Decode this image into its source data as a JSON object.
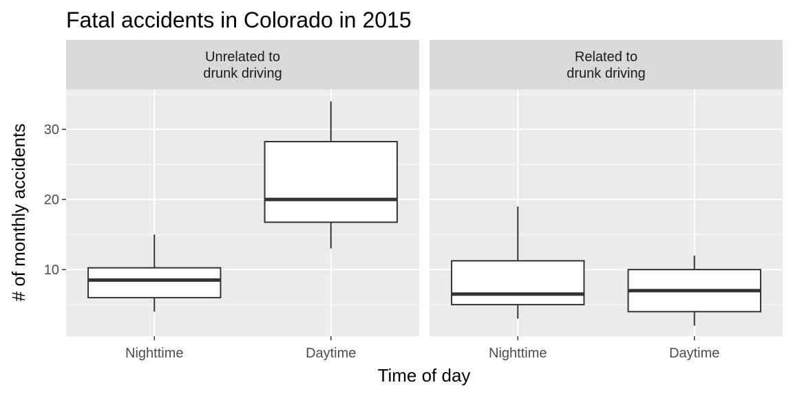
{
  "chart_data": {
    "type": "boxplot",
    "title": "Fatal accidents in Colorado in 2015",
    "xlabel": "Time of day",
    "ylabel": "# of monthly accidents",
    "categories": [
      "Nighttime",
      "Daytime"
    ],
    "y_ticks": [
      10,
      20,
      30
    ],
    "ylim": [
      0.5,
      35.7
    ],
    "grid": true,
    "panels": [
      {
        "strip_lines": [
          "Unrelated to",
          "drunk driving"
        ],
        "boxes": [
          {
            "category": "Nighttime",
            "min": 4,
            "q1": 6,
            "median": 8.5,
            "q3": 10.25,
            "max": 15
          },
          {
            "category": "Daytime",
            "min": 13,
            "q1": 16.75,
            "median": 20,
            "q3": 28.25,
            "max": 34
          }
        ]
      },
      {
        "strip_lines": [
          "Related to",
          "drunk driving"
        ],
        "boxes": [
          {
            "category": "Nighttime",
            "min": 3,
            "q1": 5,
            "median": 6.5,
            "q3": 11.25,
            "max": 19
          },
          {
            "category": "Daytime",
            "min": 2,
            "q1": 4,
            "median": 7,
            "q3": 10,
            "max": 12
          }
        ]
      }
    ]
  }
}
